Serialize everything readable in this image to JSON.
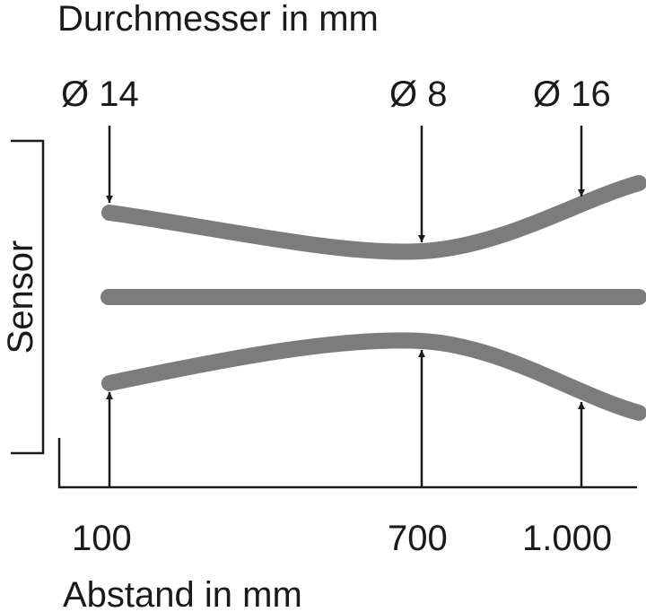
{
  "header": {
    "title": "Durchmesser in mm"
  },
  "diameters": [
    "Ø 14",
    "Ø 8",
    "Ø 16"
  ],
  "sensor_label": "Sensor",
  "distances": [
    "100",
    "700",
    "1.000"
  ],
  "x_axis_label": "Abstand in mm"
}
